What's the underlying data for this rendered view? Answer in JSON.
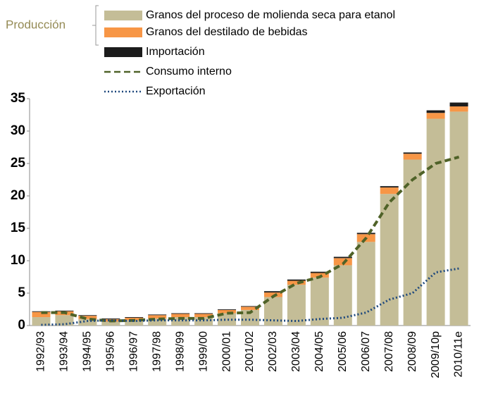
{
  "chart_data": {
    "type": "bar",
    "annotation": "Producción",
    "categories": [
      "1992/93",
      "1993/94",
      "1994/95",
      "1995/96",
      "1996/97",
      "1997/98",
      "1998/99",
      "1999/00",
      "2000/01",
      "2001/02",
      "2002/03",
      "2003/04",
      "2004/05",
      "2005/06",
      "2006/07",
      "2007/08",
      "2008/09",
      "2009/10p",
      "2010/11e"
    ],
    "series": [
      {
        "name": "Granos del proceso de molienda seca para etanol",
        "type": "bar",
        "color": "#c4bd97",
        "values": [
          1.3,
          1.6,
          1.0,
          0.6,
          0.8,
          1.1,
          1.3,
          1.3,
          1.9,
          2.4,
          4.4,
          6.3,
          7.4,
          9.3,
          12.9,
          20.3,
          25.6,
          31.9,
          33.0
        ]
      },
      {
        "name": "Granos del destilado de bebidas",
        "type": "bar",
        "color": "#f79646",
        "values": [
          0.8,
          0.6,
          0.5,
          0.4,
          0.4,
          0.5,
          0.5,
          0.5,
          0.5,
          0.5,
          0.7,
          0.6,
          0.7,
          1.1,
          1.2,
          1.0,
          0.9,
          0.9,
          0.8
        ]
      },
      {
        "name": "Importación",
        "type": "bar",
        "color": "#1c1c1c",
        "values": [
          0.1,
          0.1,
          0.1,
          0.1,
          0.1,
          0.1,
          0.1,
          0.1,
          0.1,
          0.1,
          0.2,
          0.2,
          0.2,
          0.2,
          0.2,
          0.2,
          0.2,
          0.4,
          0.6
        ]
      },
      {
        "name": "Consumo interno",
        "type": "line",
        "style": "dashed",
        "color": "#4f6228",
        "values": [
          2.0,
          2.0,
          1.0,
          0.7,
          0.8,
          1.0,
          1.1,
          1.1,
          1.9,
          2.0,
          4.5,
          6.5,
          7.5,
          9.5,
          13.5,
          19.0,
          22.5,
          25.0,
          26.0
        ]
      },
      {
        "name": "Exportación",
        "type": "line",
        "style": "dotted",
        "color": "#1f497d",
        "values": [
          0.1,
          0.2,
          0.7,
          0.8,
          0.7,
          0.8,
          0.8,
          0.8,
          0.9,
          0.9,
          0.8,
          0.7,
          1.0,
          1.2,
          2.0,
          4.0,
          5.0,
          8.2,
          8.8
        ]
      }
    ],
    "ylim": [
      0,
      35
    ],
    "yticks": [
      0,
      5,
      10,
      15,
      20,
      25,
      30,
      35
    ]
  }
}
